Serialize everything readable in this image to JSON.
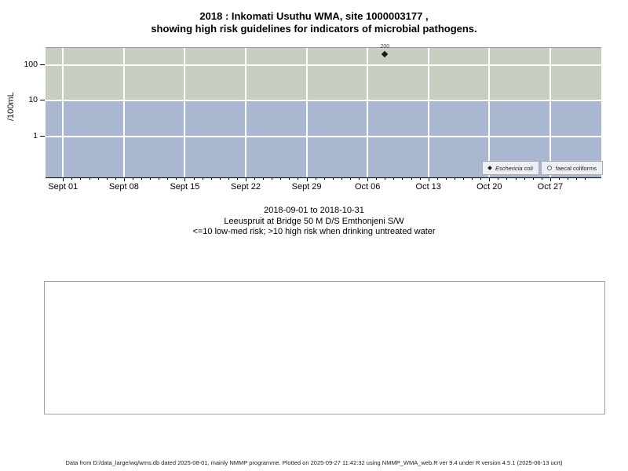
{
  "title": {
    "line1": "2018 : Inkomati Usuthu WMA, site 1000003177 ,",
    "line2": "showing high risk guidelines for indicators of microbial pathogens."
  },
  "chart": {
    "ylabel": "/100mL",
    "colors": {
      "high_risk_band": "#c6cec2",
      "low_med_risk_band": "#a9b7d1",
      "gridline": "#ffffff",
      "point": "#1a1a1a",
      "legend_fill": "#edeff4"
    },
    "legend": [
      {
        "marker": "filled-diamond-icon",
        "label": "Eschericia coli"
      },
      {
        "marker": "open-circle-icon",
        "label": "faecal coliforms"
      }
    ]
  },
  "chart_data": {
    "type": "scatter",
    "title": "2018 : Inkomati Usuthu WMA, site 1000003177 , showing high risk guidelines for indicators of microbial pathogens.",
    "xlabel": "",
    "ylabel": "/100mL",
    "yscale": "log",
    "ylim": [
      0.08,
      240
    ],
    "yticks": [
      100,
      10,
      1
    ],
    "x_range": [
      "2018-09-01",
      "2018-10-31"
    ],
    "x_tick_labels": [
      "Sept 01",
      "Sept 08",
      "Sept 15",
      "Sept 22",
      "Sept 29",
      "Oct 06",
      "Oct 13",
      "Oct 20",
      "Oct 27"
    ],
    "grid": "weekly vertical and decade horizontal white gridlines",
    "legend_position": "bottom-right inside panel",
    "bands": [
      {
        "label": "high risk (>10)",
        "from": 10,
        "to": 240,
        "color": "#c6cec2"
      },
      {
        "label": "low-med risk (<=10)",
        "from": 0.08,
        "to": 10,
        "color": "#a9b7d1"
      }
    ],
    "series": [
      {
        "name": "Eschericia coli",
        "marker": "filled-diamond",
        "points": [
          {
            "date": "2018-10-08",
            "value": 200,
            "label": "200"
          }
        ]
      },
      {
        "name": "faecal coliforms",
        "marker": "open-circle",
        "points": []
      }
    ]
  },
  "caption": {
    "line1": "2018-09-01 to 2018-10-31",
    "line2": "Leeuspruit at Bridge 50 M D/S Emthonjeni S/W",
    "line3": "<=10 low-med risk; >10 high risk when drinking untreated water"
  },
  "footer": "Data from D:/data_large/wq/wms.db dated 2025-08-01, mainly NMMP programme. Plotted on 2025-09-27 11:42:32 using NMMP_WMA_web.R ver 9.4 under R version 4.5.1 (2025-06-13 ucrt)"
}
